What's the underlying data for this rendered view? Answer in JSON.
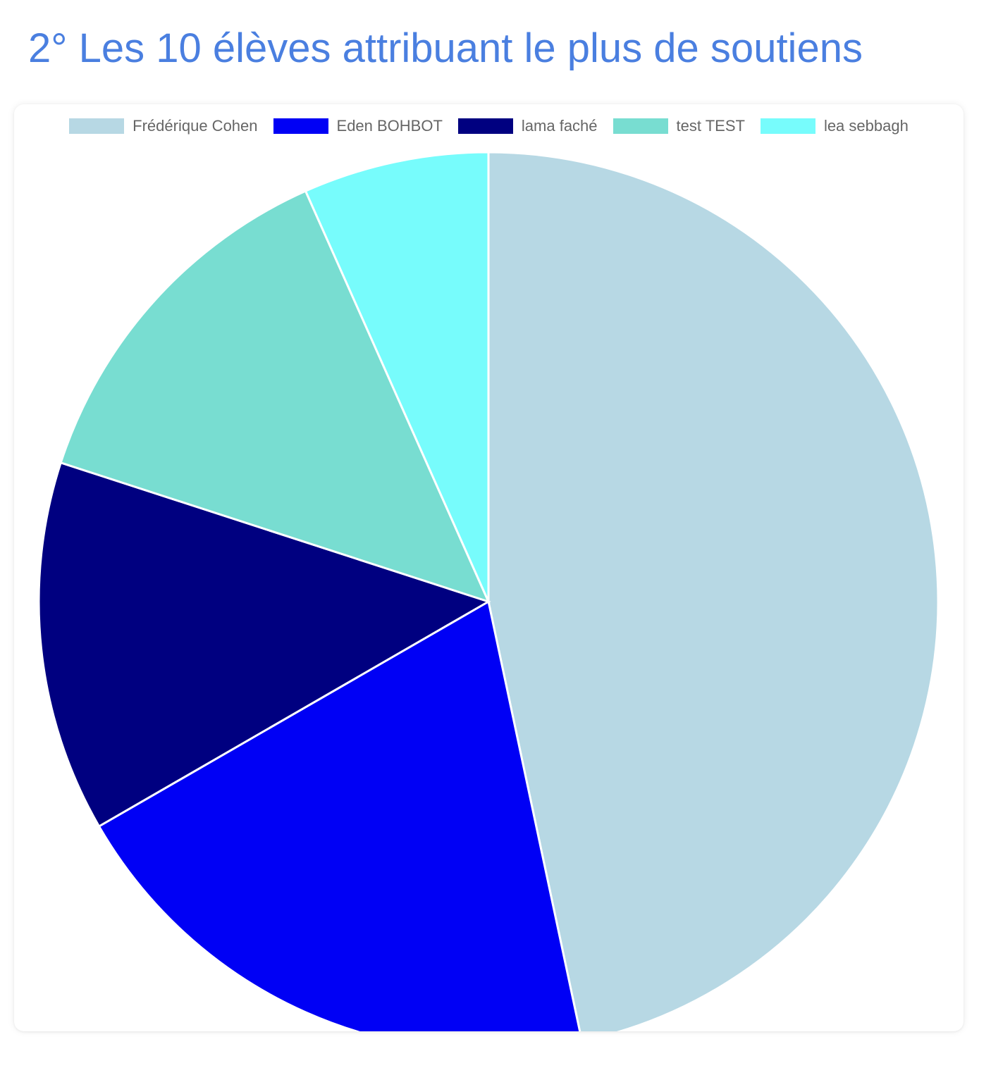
{
  "page": {
    "title": "2° Les 10 élèves attribuant le plus de soutiens"
  },
  "chart_data": {
    "type": "pie",
    "title": "",
    "categories": [
      "Frédérique Cohen",
      "Eden BOHBOT",
      "lama faché",
      "test TEST",
      "lea sebbagh"
    ],
    "values": [
      7,
      3,
      2,
      2,
      1
    ],
    "colors": [
      "#b7d8e4",
      "#0000f5",
      "#000080",
      "#78ddd1",
      "#77fcfc"
    ],
    "legend_position": "top",
    "slice_border_color": "#ffffff"
  }
}
